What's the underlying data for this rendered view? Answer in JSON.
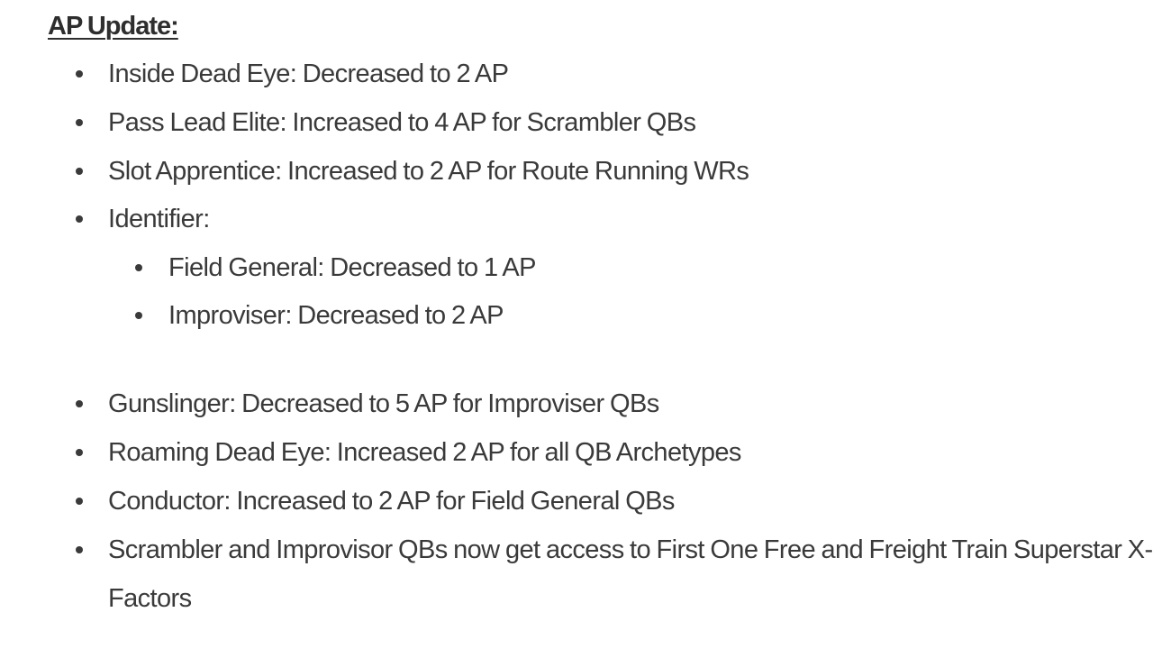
{
  "heading": "AP Update:",
  "items": [
    "Inside Dead Eye: Decreased to 2 AP",
    "Pass Lead Elite: Increased to 4 AP for Scrambler QBs",
    "Slot Apprentice: Increased to 2 AP for Route Running WRs",
    "Identifier:",
    "Gunslinger: Decreased to 5 AP for Improviser QBs",
    "Roaming Dead Eye: Increased 2 AP for all QB Archetypes",
    "Conductor: Increased to 2 AP for Field General QBs",
    "Scrambler and Improvisor QBs now get access to First One Free and Freight Train Superstar X-Factors"
  ],
  "sub_items": [
    "Field General: Decreased to 1 AP",
    "Improviser: Decreased to 2 AP"
  ]
}
